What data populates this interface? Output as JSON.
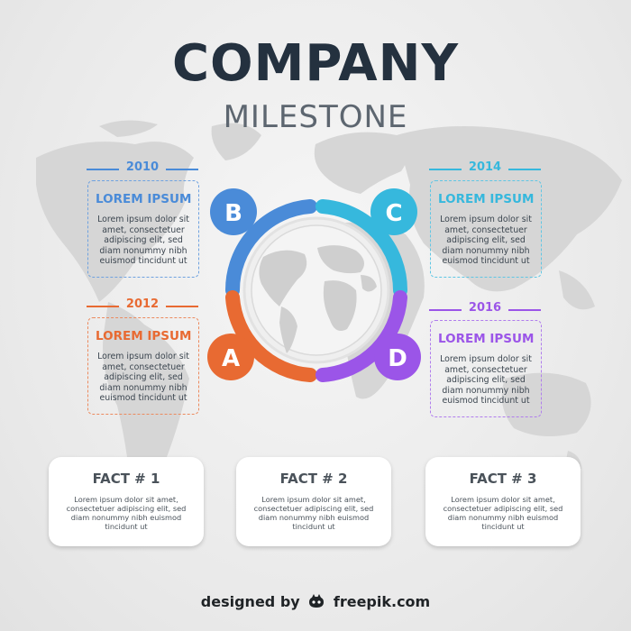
{
  "title": "COMPANY",
  "subtitle": "MILESTONE",
  "colors": {
    "blue": "#4a8bd8",
    "cyan": "#36b8dd",
    "orange": "#e86a32",
    "purple": "#9b55e8",
    "dark": "#24313f"
  },
  "milestones": [
    {
      "letter": "B",
      "year": "2010",
      "heading": "LOREM IPSUM",
      "text": "Lorem ipsum dolor sit amet, consectetuer adipiscing elit, sed diam nonummy nibh euismod tincidunt ut"
    },
    {
      "letter": "C",
      "year": "2014",
      "heading": "LOREM IPSUM",
      "text": "Lorem ipsum dolor sit amet, consectetuer adipiscing elit, sed diam nonummy nibh euismod tincidunt ut"
    },
    {
      "letter": "A",
      "year": "2012",
      "heading": "LOREM IPSUM",
      "text": "Lorem ipsum dolor sit amet, consectetuer adipiscing elit, sed diam nonummy nibh euismod tincidunt ut"
    },
    {
      "letter": "D",
      "year": "2016",
      "heading": "LOREM IPSUM",
      "text": "Lorem ipsum dolor sit amet, consectetuer adipiscing elit, sed diam nonummy nibh euismod tincidunt ut"
    }
  ],
  "facts": [
    {
      "heading": "FACT # 1",
      "text": "Lorem ipsum dolor sit amet, consectetuer adipiscing elit, sed diam nonummy nibh euismod tincidunt ut"
    },
    {
      "heading": "FACT # 2",
      "text": "Lorem ipsum dolor sit amet, consectetuer adipiscing elit, sed diam nonummy nibh euismod tincidunt ut"
    },
    {
      "heading": "FACT # 3",
      "text": "Lorem ipsum dolor sit amet, consectetuer adipiscing elit, sed diam nonummy nibh euismod tincidunt ut"
    }
  ],
  "footer": {
    "prefix": "designed by",
    "brand": "freepik.com",
    "icon": "freepik-logo-icon"
  }
}
